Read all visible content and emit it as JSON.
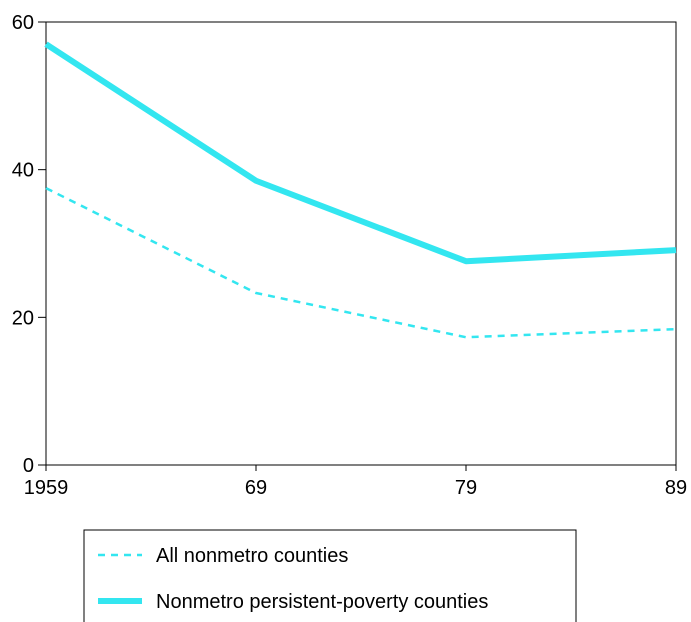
{
  "chart_data": {
    "type": "line",
    "title": "",
    "xlabel": "",
    "ylabel": "",
    "categories": [
      "1959",
      "69",
      "79",
      "89"
    ],
    "x": [
      1959,
      1969,
      1979,
      1989
    ],
    "ylim": [
      0,
      60
    ],
    "yticks": [
      0,
      20,
      40,
      60
    ],
    "grid": false,
    "legend_position": "bottom",
    "series": [
      {
        "name": "All nonmetro counties",
        "values": [
          37.5,
          23.3,
          17.3,
          18.4
        ],
        "color": "#33e6f0",
        "style": "dashed"
      },
      {
        "name": "Nonmetro persistent-poverty counties",
        "values": [
          57.0,
          38.5,
          27.6,
          29.1
        ],
        "color": "#33e6f0",
        "style": "solid"
      }
    ]
  }
}
